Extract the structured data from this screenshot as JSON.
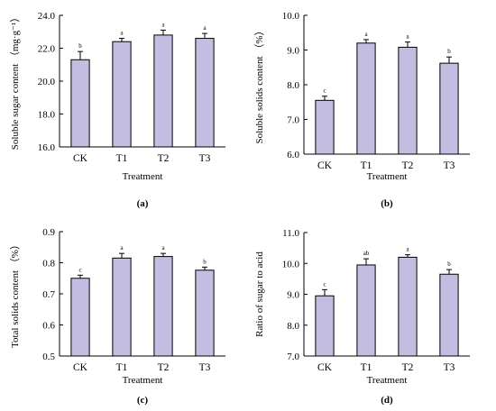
{
  "chart_data": [
    {
      "panel_label": "(a)",
      "type": "bar",
      "categories": [
        "CK",
        "T1",
        "T2",
        "T3"
      ],
      "values": [
        21.3,
        22.4,
        22.8,
        22.6
      ],
      "errors": [
        0.5,
        0.2,
        0.3,
        0.3
      ],
      "significance": [
        "b",
        "a",
        "a",
        "a"
      ],
      "xlabel": "Treatment",
      "ylabel": "Soluble sugar content  （mg·g⁻¹）",
      "ylim": [
        16.0,
        24.0
      ],
      "yticks": [
        "16.0",
        "18.0",
        "20.0",
        "22.0",
        "24.0"
      ],
      "bar_color": "#c4bde2"
    },
    {
      "panel_label": "(b)",
      "type": "bar",
      "categories": [
        "CK",
        "T1",
        "T2",
        "T3"
      ],
      "values": [
        7.55,
        9.2,
        9.08,
        8.62
      ],
      "errors": [
        0.12,
        0.1,
        0.15,
        0.18
      ],
      "significance": [
        "c",
        "a",
        "a",
        "b"
      ],
      "xlabel": "Treatment",
      "ylabel": "Soluble solids content  （%）",
      "ylim": [
        6.0,
        10.0
      ],
      "yticks": [
        "6.0",
        "7.0",
        "8.0",
        "9.0",
        "10.0"
      ],
      "bar_color": "#c4bde2"
    },
    {
      "panel_label": "(c)",
      "type": "bar",
      "categories": [
        "CK",
        "T1",
        "T2",
        "T3"
      ],
      "values": [
        0.75,
        0.815,
        0.82,
        0.776
      ],
      "errors": [
        0.01,
        0.015,
        0.01,
        0.01
      ],
      "significance": [
        "c",
        "a",
        "a",
        "b"
      ],
      "xlabel": "Treatment",
      "ylabel": "Total solids content  （%）",
      "ylim": [
        0.5,
        0.9
      ],
      "yticks": [
        "0.5",
        "0.6",
        "0.7",
        "0.8",
        "0.9"
      ],
      "bar_color": "#c4bde2"
    },
    {
      "panel_label": "(d)",
      "type": "bar",
      "categories": [
        "CK",
        "T1",
        "T2",
        "T3"
      ],
      "values": [
        8.95,
        9.95,
        10.2,
        9.65
      ],
      "errors": [
        0.2,
        0.2,
        0.08,
        0.15
      ],
      "significance": [
        "c",
        "ab",
        "a",
        "b"
      ],
      "xlabel": "Treatment",
      "ylabel": "Ratio of sugar to acid",
      "ylim": [
        7.0,
        11.0
      ],
      "yticks": [
        "7.0",
        "8.0",
        "9.0",
        "10.0",
        "11.0"
      ],
      "bar_color": "#c4bde2"
    }
  ]
}
